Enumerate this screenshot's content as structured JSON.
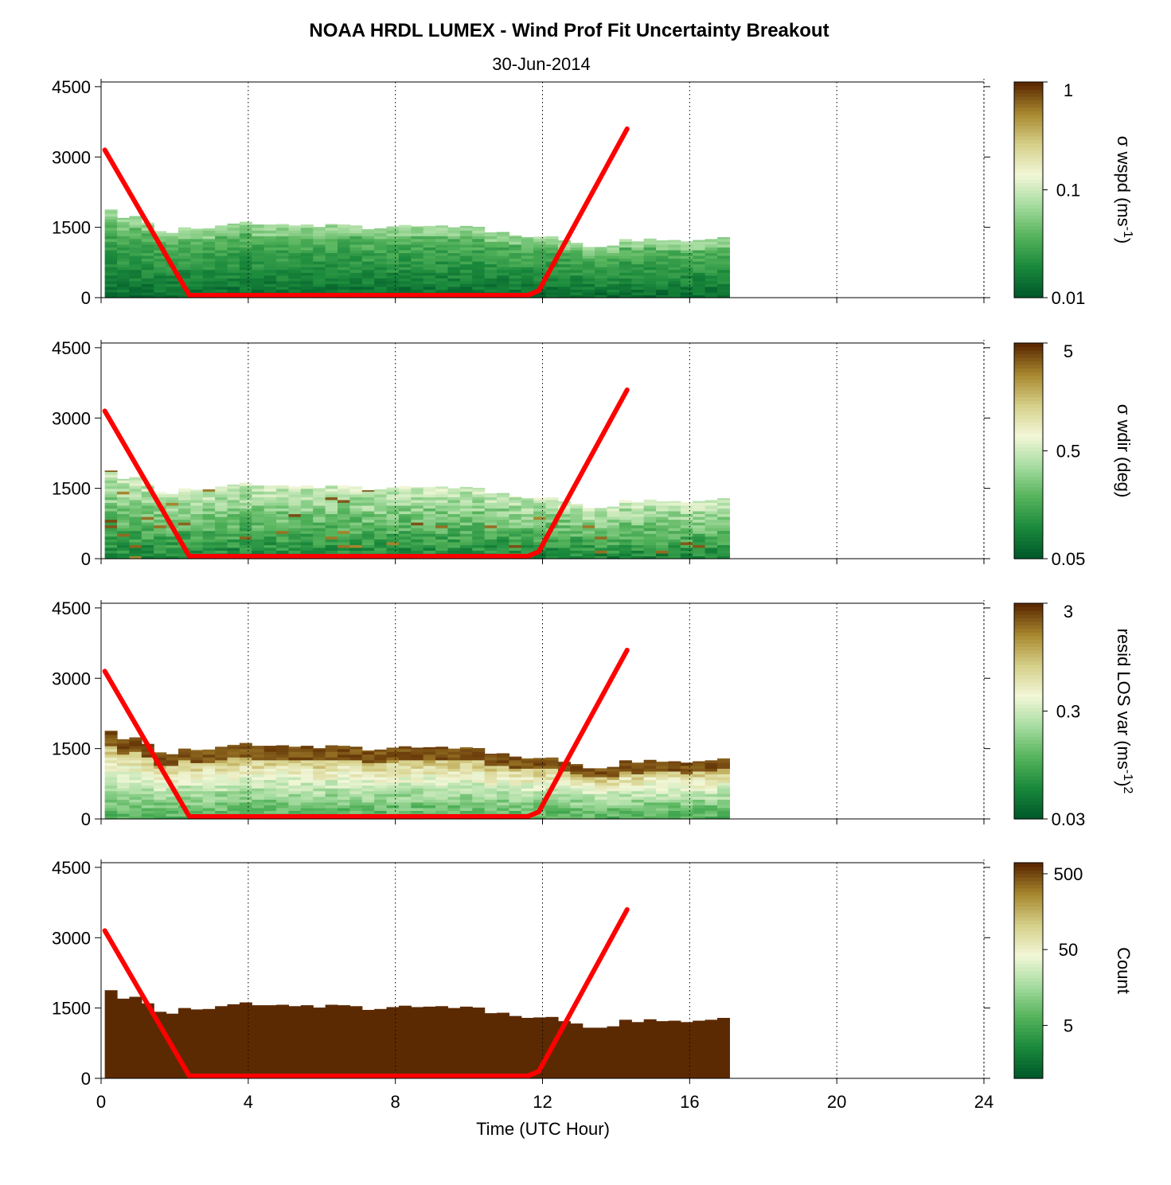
{
  "title": "NOAA HRDL LUMEX - Wind Prof Fit Uncertainty Breakout",
  "subtitle": "30-Jun-2014",
  "xlabel": "Time (UTC Hour)",
  "x_ticks": [
    "0",
    "4",
    "8",
    "12",
    "16",
    "20",
    "24"
  ],
  "y_ticks": [
    "0",
    "1500",
    "3000",
    "4500"
  ],
  "colors": {
    "mixing_height_line": "#ff0000",
    "grid": "#000000",
    "count_fill": "#5c2a02"
  },
  "chart_data": [
    {
      "type": "heatmap",
      "panel": "wspd",
      "xlim": [
        0,
        24
      ],
      "ylim": [
        0,
        4600
      ],
      "colorbar": {
        "label_parts": [
          "σ wspd (ms",
          "-1",
          ")"
        ],
        "scale": "log",
        "range": [
          0.01,
          1
        ],
        "ticks": [
          "1",
          "0.1",
          "0.01"
        ],
        "colormap": [
          "#005a2a",
          "#1b8a3c",
          "#56b45c",
          "#a6dca0",
          "#f2f7d8",
          "#d6d08a",
          "#a98a30",
          "#5c2a02"
        ]
      },
      "data_description": "profile top height (m) per time column",
      "mixing_height_line": {
        "x": [
          0.1,
          2.4,
          11.6,
          11.9,
          14.3
        ],
        "y": [
          3150,
          50,
          50,
          150,
          3600
        ]
      }
    },
    {
      "type": "heatmap",
      "panel": "wdir",
      "xlim": [
        0,
        24
      ],
      "ylim": [
        0,
        4600
      ],
      "colorbar": {
        "label_parts": [
          "σ wdir (deg)"
        ],
        "scale": "log",
        "range": [
          0.05,
          5
        ],
        "ticks": [
          "5",
          "0.5",
          "0.05"
        ],
        "colormap": [
          "#005a2a",
          "#1b8a3c",
          "#56b45c",
          "#a6dca0",
          "#f2f7d8",
          "#d6d08a",
          "#a98a30",
          "#5c2a02"
        ]
      },
      "mixing_height_line": {
        "x": [
          0.1,
          2.4,
          11.6,
          11.9,
          14.3
        ],
        "y": [
          3150,
          50,
          50,
          150,
          3600
        ]
      }
    },
    {
      "type": "heatmap",
      "panel": "resid",
      "xlim": [
        0,
        24
      ],
      "ylim": [
        0,
        4600
      ],
      "colorbar": {
        "label_parts": [
          "resid LOS var (ms",
          "-1",
          ")",
          "2"
        ],
        "scale": "log",
        "range": [
          0.03,
          3
        ],
        "ticks": [
          "3",
          "0.3",
          "0.03"
        ],
        "colormap": [
          "#005a2a",
          "#1b8a3c",
          "#56b45c",
          "#a6dca0",
          "#f2f7d8",
          "#d6d08a",
          "#a98a30",
          "#5c2a02"
        ]
      },
      "mixing_height_line": {
        "x": [
          0.1,
          2.4,
          11.6,
          11.9,
          14.3
        ],
        "y": [
          3150,
          50,
          50,
          150,
          3600
        ]
      }
    },
    {
      "type": "heatmap",
      "panel": "count",
      "xlim": [
        0,
        24
      ],
      "ylim": [
        0,
        4600
      ],
      "colorbar": {
        "label_parts": [
          "Count"
        ],
        "scale": "log",
        "range": [
          1,
          700
        ],
        "ticks": [
          "500",
          "50",
          "5"
        ],
        "colormap": [
          "#005a2a",
          "#1b8a3c",
          "#56b45c",
          "#a6dca0",
          "#f2f7d8",
          "#d6d08a",
          "#a98a30",
          "#5c2a02"
        ]
      },
      "mixing_height_line": {
        "x": [
          0.1,
          2.4,
          11.6,
          11.9,
          14.3
        ],
        "y": [
          3150,
          50,
          50,
          150,
          3600
        ]
      }
    }
  ],
  "profile_tops": {
    "x_start": 0.1,
    "x_step": 0.333,
    "values": [
      1880,
      1700,
      1740,
      1600,
      1420,
      1380,
      1500,
      1470,
      1480,
      1540,
      1580,
      1620,
      1560,
      1560,
      1570,
      1540,
      1560,
      1510,
      1570,
      1560,
      1540,
      1460,
      1480,
      1520,
      1550,
      1520,
      1530,
      1540,
      1500,
      1530,
      1510,
      1390,
      1400,
      1330,
      1290,
      1300,
      1310,
      1220,
      1170,
      1080,
      1080,
      1110,
      1250,
      1200,
      1260,
      1220,
      1230,
      1200,
      1230,
      1250,
      1290
    ]
  }
}
